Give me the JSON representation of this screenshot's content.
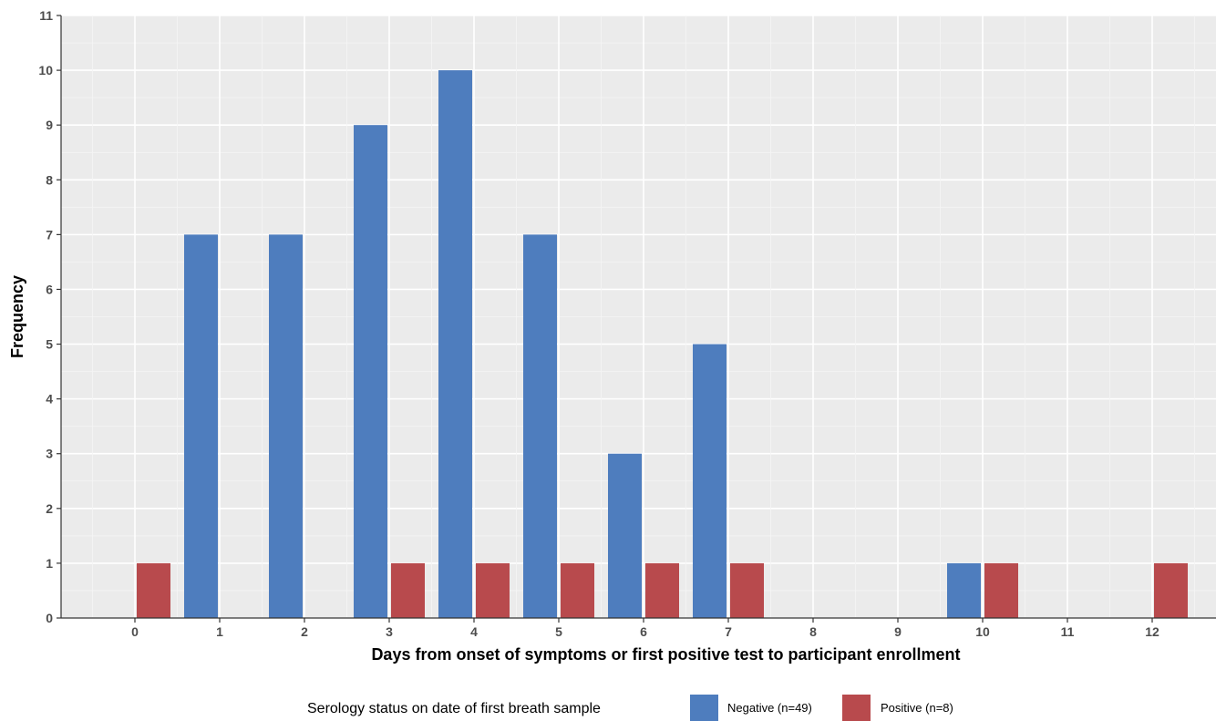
{
  "chart_data": {
    "type": "bar",
    "title": "",
    "xlabel": "Days from onset of symptoms or first positive test to participant enrollment",
    "ylabel": "Frequency",
    "categories": [
      "0",
      "1",
      "2",
      "3",
      "4",
      "5",
      "6",
      "7",
      "8",
      "9",
      "10",
      "11",
      "12"
    ],
    "series": [
      {
        "name": "Negative (n=49)",
        "color": "#4e7dbe",
        "values": [
          0,
          7,
          7,
          9,
          10,
          7,
          3,
          5,
          0,
          0,
          1,
          0,
          0
        ]
      },
      {
        "name": "Positive (n=8)",
        "color": "#b84a4d",
        "values": [
          1,
          0,
          0,
          1,
          1,
          1,
          1,
          1,
          0,
          0,
          1,
          0,
          1
        ]
      }
    ],
    "ylim": [
      0,
      11
    ],
    "yticks": [
      0,
      1,
      2,
      3,
      4,
      5,
      6,
      7,
      8,
      9,
      10,
      11
    ],
    "grid": true,
    "panel_background": "#ebebeb",
    "legend": {
      "title": "Serology status on date of first breath sample",
      "position": "bottom"
    }
  }
}
